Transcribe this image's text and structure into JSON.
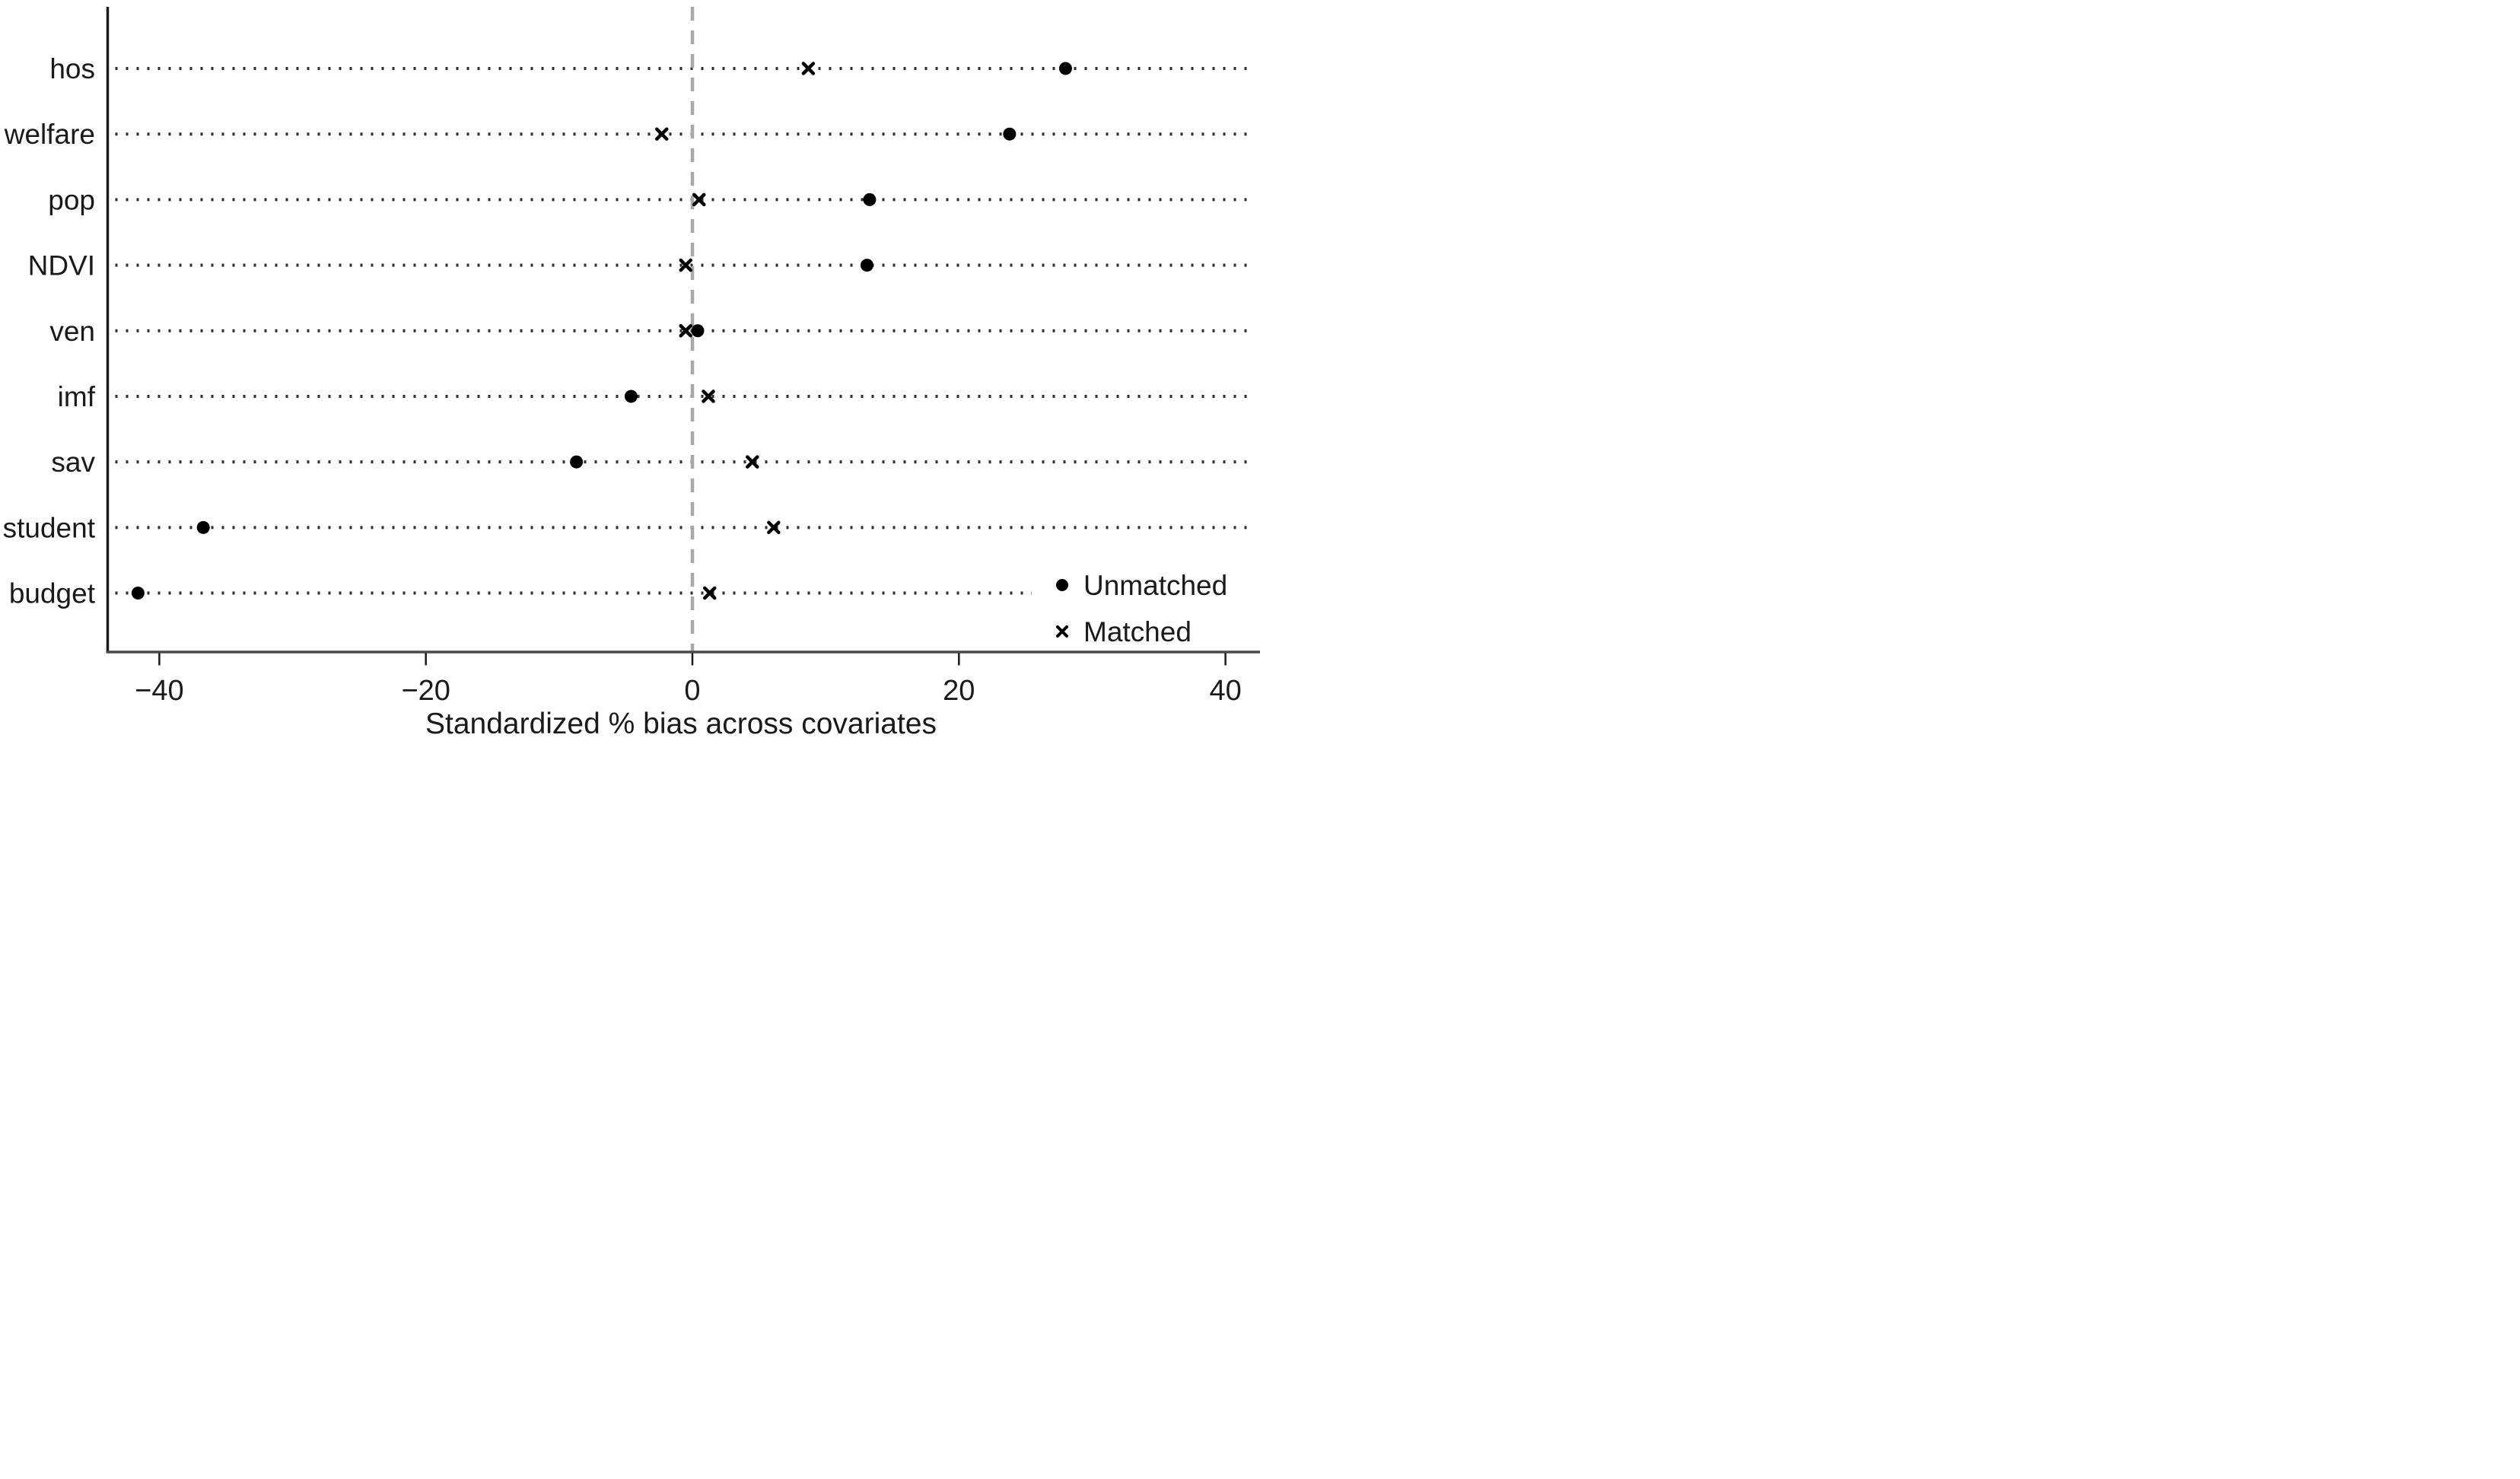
{
  "chart_data": {
    "type": "scatter",
    "subtype": "covariate-balance-dot-plot",
    "title": "",
    "xlabel": "Standardized % bias across covariates",
    "ylabel": "",
    "categories": [
      "hos",
      "welfare",
      "pop",
      "NDVI",
      "ven",
      "imf",
      "sav",
      "student",
      "budget"
    ],
    "series": [
      {
        "name": "Unmatched",
        "marker": "filled-circle",
        "color": "#000000",
        "values": [
          28.0,
          23.8,
          13.3,
          13.1,
          0.4,
          -4.6,
          -8.7,
          -36.7,
          -41.6
        ]
      },
      {
        "name": "Matched",
        "marker": "x",
        "color": "#000000",
        "values": [
          8.7,
          -2.3,
          0.5,
          -0.5,
          -0.5,
          1.2,
          4.5,
          6.1,
          1.3
        ]
      }
    ],
    "x_ticks": [
      -40,
      -20,
      0,
      20,
      40
    ],
    "x_tick_labels": [
      "−40",
      "−20",
      "0",
      "20",
      "40"
    ],
    "xlim": [
      -43.9,
      42.0
    ],
    "reference_line_x": 0,
    "reference_line_style": "dashed",
    "grid": "dotted-horizontal",
    "legend_position": "bottom-right-inside",
    "colors": {
      "marker": "#000000",
      "zero_line": "#a8a8a8",
      "grid": "#2e2e2e",
      "axis": "#4a4a4a",
      "tick": "#1a1a1a",
      "text": "#1a1a1a",
      "background": "#ffffff"
    }
  }
}
